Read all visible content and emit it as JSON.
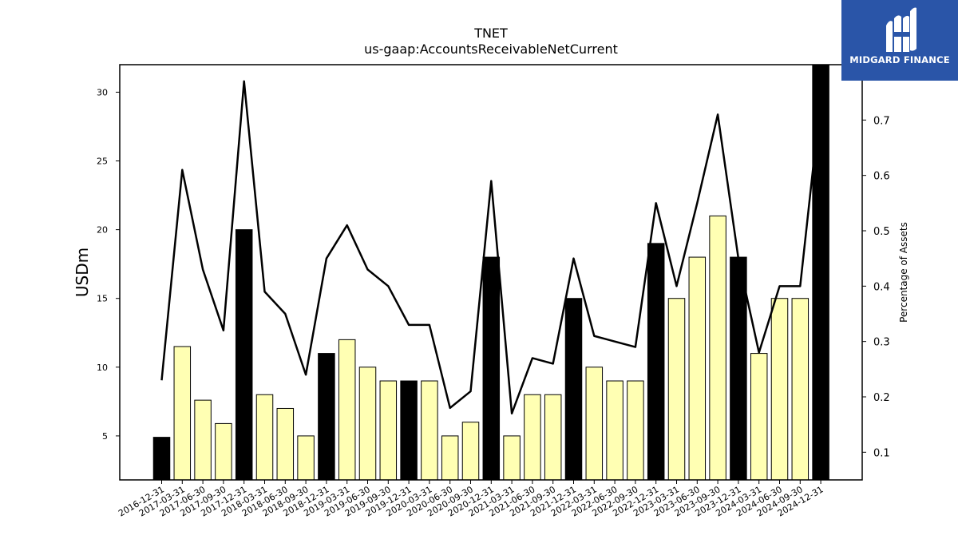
{
  "header": {
    "title": "TNET",
    "subtitle": "us-gaap:AccountsReceivableNetCurrent"
  },
  "logo": {
    "text": "MIDGARD FINANCE",
    "bg": "#2a55a8"
  },
  "chart_data": {
    "type": "bar",
    "categories": [
      "2016-12-31",
      "2017-03-31",
      "2017-06-30",
      "2017-09-30",
      "2017-12-31",
      "2018-03-31",
      "2018-06-30",
      "2018-09-30",
      "2018-12-31",
      "2019-03-31",
      "2019-06-30",
      "2019-09-30",
      "2019-12-31",
      "2020-03-31",
      "2020-06-30",
      "2020-09-30",
      "2020-12-31",
      "2021-03-31",
      "2021-06-30",
      "2021-09-30",
      "2021-12-31",
      "2022-03-31",
      "2022-06-30",
      "2022-09-30",
      "2022-12-31",
      "2023-03-31",
      "2023-06-30",
      "2023-09-30",
      "2023-12-31",
      "2024-03-31",
      "2024-06-30",
      "2024-09-30",
      "2024-12-31"
    ],
    "values": [
      4.9,
      11.5,
      7.6,
      5.9,
      20,
      8,
      7,
      5,
      11,
      12,
      10,
      9,
      9,
      9,
      5,
      6,
      18,
      5,
      8,
      8,
      15,
      10,
      9,
      9,
      19,
      15,
      18,
      21,
      18,
      11,
      15,
      15,
      32
    ],
    "bar_colors": [
      "#000000",
      "#ffffb3",
      "#ffffb3",
      "#ffffb3",
      "#000000",
      "#ffffb3",
      "#ffffb3",
      "#ffffb3",
      "#000000",
      "#ffffb3",
      "#ffffb3",
      "#ffffb3",
      "#000000",
      "#ffffb3",
      "#ffffb3",
      "#ffffb3",
      "#000000",
      "#ffffb3",
      "#ffffb3",
      "#ffffb3",
      "#000000",
      "#ffffb3",
      "#ffffb3",
      "#ffffb3",
      "#000000",
      "#ffffb3",
      "#ffffb3",
      "#ffffb3",
      "#000000",
      "#ffffb3",
      "#ffffb3",
      "#ffffb3",
      "#000000"
    ],
    "line_values": [
      0.23,
      0.61,
      0.43,
      0.32,
      0.77,
      0.39,
      0.35,
      0.24,
      0.45,
      0.51,
      0.43,
      0.4,
      0.33,
      0.33,
      0.18,
      0.21,
      0.59,
      0.17,
      0.27,
      0.26,
      0.45,
      0.31,
      0.3,
      0.29,
      0.55,
      0.4,
      0.55,
      0.71,
      0.45,
      0.28,
      0.4,
      0.4,
      0.74
    ],
    "ylabel": "USDm",
    "y2label": "Percentage of Assets",
    "ylim": [
      1.8,
      32
    ],
    "y2lim": [
      0.05,
      0.8
    ],
    "yticks": [
      5,
      10,
      15,
      20,
      25,
      30
    ],
    "y2ticks": [
      0.1,
      0.2,
      0.3,
      0.4,
      0.5,
      0.6,
      0.7
    ],
    "grid": false,
    "legend": false
  }
}
